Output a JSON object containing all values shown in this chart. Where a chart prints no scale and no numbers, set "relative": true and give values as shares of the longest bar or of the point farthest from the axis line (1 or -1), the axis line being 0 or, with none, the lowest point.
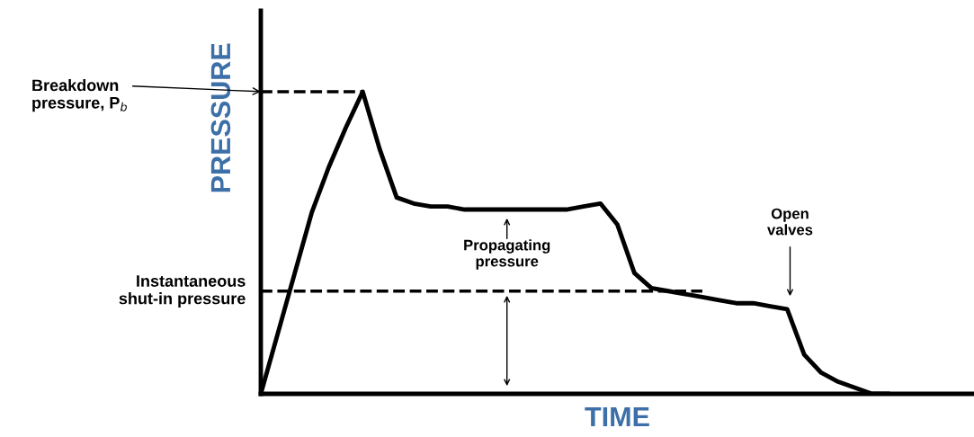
{
  "chart_data": {
    "type": "line",
    "relative": true,
    "xlabel": "TIME",
    "ylabel": "PRESSURE",
    "categories": [
      null,
      null,
      null,
      null,
      null,
      null,
      null,
      null,
      null,
      null,
      null,
      null,
      null,
      null,
      null,
      null,
      null,
      null,
      null,
      null,
      null,
      null,
      null,
      null,
      null,
      null,
      null,
      null,
      null,
      null,
      null,
      null,
      null,
      null,
      null,
      null,
      null,
      null,
      null,
      null,
      null,
      null,
      null
    ],
    "series": [
      {
        "color": "#000000",
        "values": [
          0,
          0.2,
          0.4,
          0.6,
          0.75,
          0.88,
          1.0,
          0.81,
          0.65,
          0.63,
          0.62,
          0.62,
          0.61,
          0.61,
          0.61,
          0.61,
          0.61,
          0.61,
          0.61,
          0.62,
          0.63,
          0.56,
          0.4,
          0.35,
          0.34,
          0.33,
          0.32,
          0.31,
          0.3,
          0.3,
          0.29,
          0.28,
          0.13,
          0.07,
          0.04,
          0.02,
          0,
          0,
          null,
          null,
          null,
          null,
          null
        ]
      }
    ],
    "ref_lines": [
      {
        "axis": "y",
        "value": 1.0,
        "label": "Breakdown\npressure, P$_{b}$",
        "line_style": "dashed",
        "color": "#000000"
      },
      {
        "axis": "y",
        "value": 0.34,
        "label": "Instantaneous\nshut-in pressure",
        "line_style": "dashed",
        "color": "#000000"
      }
    ],
    "annotations": [
      "Propagating\npressure",
      "Open\nvalves"
    ],
    "marker": "none",
    "line_style": "solid"
  }
}
